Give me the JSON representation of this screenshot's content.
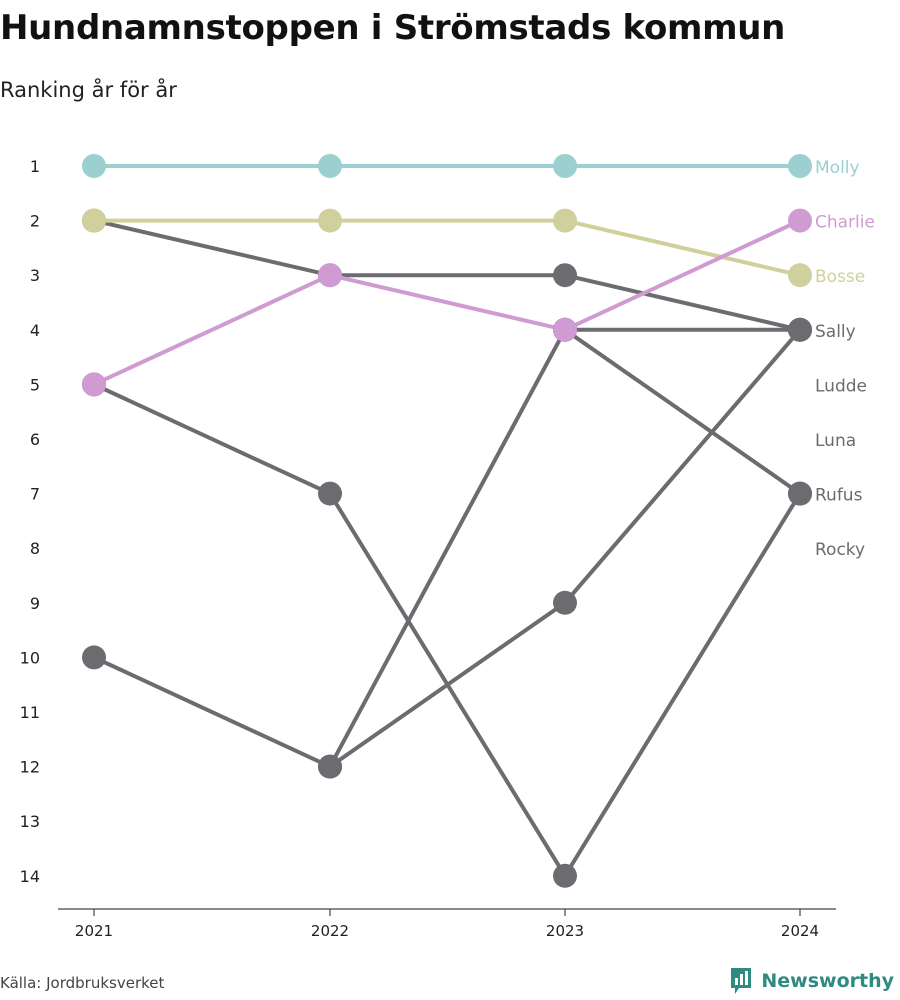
{
  "header": {
    "title": "Hundnamnstoppen i Strömstads kommun",
    "subtitle": "Ranking år för år"
  },
  "footer": {
    "source": "Källa: Jordbruksverket",
    "brand": "Newsworthy",
    "brand_icon": "bar-chart-icon",
    "brand_color": "#2f8a82"
  },
  "chart_data": {
    "type": "line",
    "title": "Hundnamnstoppen i Strömstads kommun",
    "subtitle": "Ranking år för år",
    "x": [
      "2021",
      "2022",
      "2023",
      "2024"
    ],
    "y_ticks": [
      1,
      2,
      3,
      4,
      5,
      6,
      7,
      8,
      9,
      10,
      11,
      12,
      13,
      14
    ],
    "ylim": [
      1,
      14
    ],
    "y_reversed": true,
    "grid": false,
    "legend": "none",
    "series": [
      {
        "name": "Rocky",
        "values": [
          5,
          7,
          14,
          7
        ],
        "color": "#6c6b70"
      },
      {
        "name": "Luna",
        "values": [
          10,
          12,
          9,
          4
        ],
        "color": "#6c6b70"
      },
      {
        "name": "Ludde",
        "values": [
          null,
          12,
          4,
          4
        ],
        "color": "#6c6b70"
      },
      {
        "name": "Rufus",
        "values": [
          null,
          null,
          4,
          7
        ],
        "color": "#6c6b70"
      },
      {
        "name": "Sally",
        "values": [
          2,
          3,
          3,
          4
        ],
        "color": "#6c6b70"
      },
      {
        "name": "Bosse",
        "values": [
          2,
          2,
          2,
          3
        ],
        "color": "#cfd09b"
      },
      {
        "name": "Charlie",
        "values": [
          5,
          3,
          4,
          2
        ],
        "color": "#cf9bd2"
      },
      {
        "name": "Molly",
        "values": [
          1,
          1,
          1,
          1
        ],
        "color": "#9ccfcf"
      }
    ],
    "end_labels": [
      {
        "name": "Molly",
        "rank": 1,
        "color": "#9ccfcf"
      },
      {
        "name": "Charlie",
        "rank": 2,
        "color": "#cf9bd2"
      },
      {
        "name": "Bosse",
        "rank": 3,
        "color": "#cfd09b"
      },
      {
        "name": "Sally",
        "rank": 4,
        "color": "#6c6b70"
      },
      {
        "name": "Ludde",
        "rank": 5,
        "color": "#6c6b70"
      },
      {
        "name": "Luna",
        "rank": 6,
        "color": "#6c6b70"
      },
      {
        "name": "Rufus",
        "rank": 7,
        "color": "#6c6b70"
      },
      {
        "name": "Rocky",
        "rank": 8,
        "color": "#6c6b70"
      }
    ]
  }
}
